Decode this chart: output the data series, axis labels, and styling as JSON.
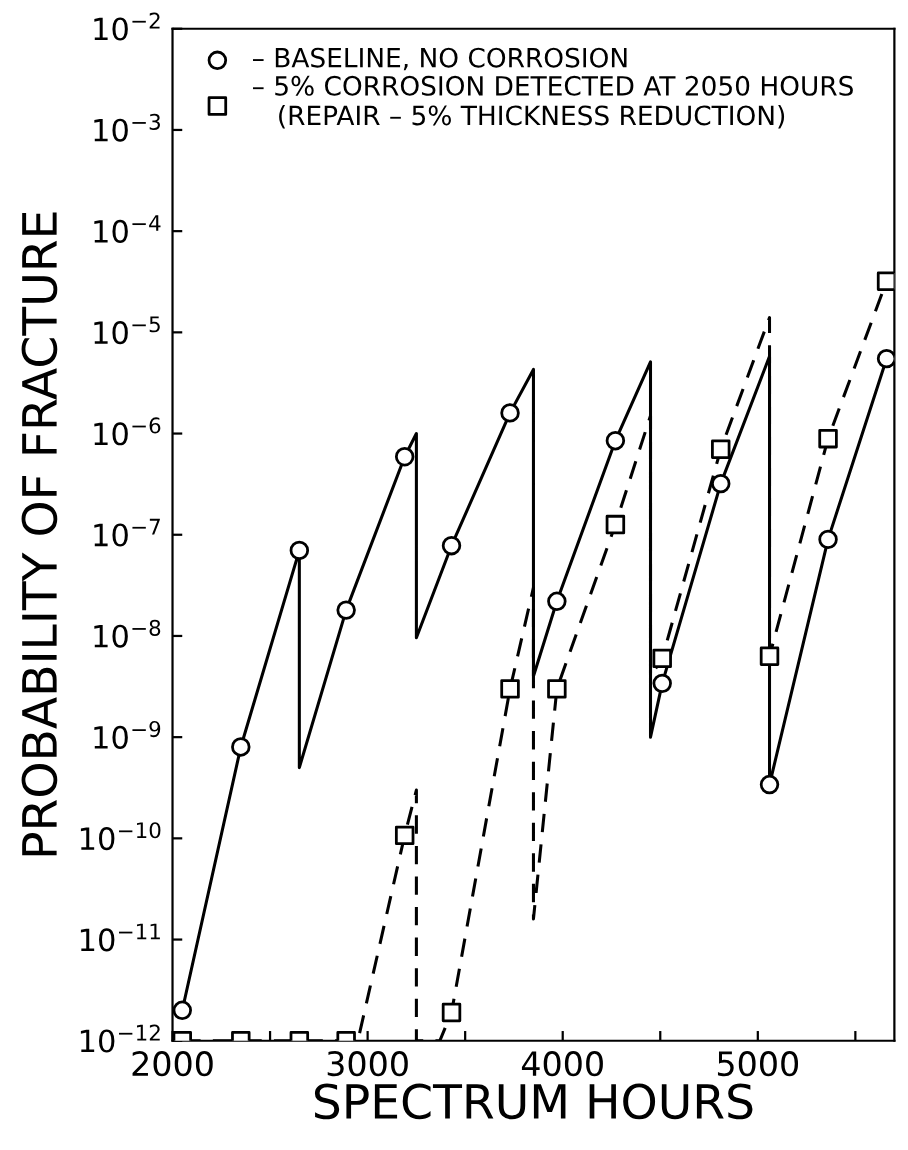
{
  "chart_data": {
    "type": "line",
    "xlabel": "SPECTRUM HOURS",
    "ylabel": "PROBABILITY OF FRACTURE",
    "log": "y",
    "grid": false,
    "legend": "top left",
    "xlim": [
      2000,
      5700
    ],
    "ylim": [
      1e-12,
      0.01
    ],
    "xticks": [
      2000,
      {
        "value": 2500,
        "label": null
      },
      3000,
      {
        "value": 3500,
        "label": null
      },
      4000,
      {
        "value": 4500,
        "label": null
      },
      5000,
      {
        "value": 5500,
        "label": null
      }
    ],
    "yticks": [
      {
        "value": 1e-12,
        "label": "10$^{−12}$"
      },
      {
        "value": 1e-11,
        "label": "10$^{−11}$"
      },
      {
        "value": 1e-10,
        "label": "10$^{−10}$"
      },
      {
        "value": 1e-09,
        "label": "10$^{−9}$"
      },
      {
        "value": 1e-08,
        "label": "10$^{−8}$"
      },
      {
        "value": 1e-07,
        "label": "10$^{−7}$"
      },
      {
        "value": 1e-06,
        "label": "10$^{−6}$"
      },
      {
        "value": 1e-05,
        "label": "10$^{−5}$"
      },
      {
        "value": 0.0001,
        "label": "10$^{−4}$"
      },
      {
        "value": 0.001,
        "label": "10$^{−3}$"
      },
      {
        "value": 0.01,
        "label": "10$^{−2}$"
      }
    ],
    "series": [
      {
        "color": "#000000",
        "line_style": "solid",
        "marker": "none",
        "x": [
          2050,
          2350,
          2650,
          2650,
          2890,
          3190,
          3250,
          3250,
          3430,
          3730,
          3850,
          3850,
          3970,
          4270,
          4450,
          4450,
          4510,
          4810,
          5060,
          5060,
          5360,
          5660
        ],
        "values": [
          2e-12,
          8e-10,
          7e-08,
          5e-10,
          1.8e-08,
          5.9e-07,
          1e-06,
          9.6e-09,
          7.8e-08,
          1.6e-06,
          4.3e-06,
          4e-09,
          2.2e-08,
          8.5e-07,
          5.1e-06,
          1e-09,
          3.4e-09,
          3.2e-07,
          5.8e-06,
          3.4e-10,
          9e-08,
          5.5e-06
        ]
      },
      {
        "color": "#000000",
        "line_style": "dashed",
        "marker": "none",
        "x": [
          2050,
          2350,
          2650,
          2890,
          2950,
          3190,
          3250,
          3250,
          3370,
          3430,
          3730,
          3850,
          3850,
          3970,
          4270,
          4450,
          4450,
          4510,
          4810,
          5060,
          5060,
          5360,
          5660
        ],
        "values": [
          1e-12,
          1e-12,
          1e-12,
          1e-12,
          1e-12,
          1.07e-10,
          3e-10,
          1e-12,
          1e-12,
          1.9e-12,
          3e-09,
          3e-08,
          1.6e-11,
          3e-09,
          1.26e-07,
          1.5e-06,
          4e-09,
          6e-09,
          7e-07,
          1.4e-05,
          6.3e-09,
          8.9e-07,
          3.2e-05
        ]
      },
      {
        "type": "scatter",
        "name": "– BASELINE, NO CORROSION",
        "color": "#000000",
        "marker": "circle",
        "x": [
          2050,
          2350,
          2650,
          2890,
          3190,
          3430,
          3730,
          3970,
          4270,
          4510,
          4810,
          5060,
          5360,
          5660
        ],
        "values": [
          2e-12,
          8e-10,
          7e-08,
          1.8e-08,
          5.9e-07,
          7.8e-08,
          1.6e-06,
          2.2e-08,
          8.5e-07,
          3.4e-09,
          3.2e-07,
          3.4e-10,
          9e-08,
          5.5e-06
        ]
      },
      {
        "type": "scatter",
        "name": "– 5% CORROSION DETECTED AT 2050 HOURS\n   (REPAIR – 5% THICKNESS REDUCTION)",
        "color": "#000000",
        "marker": "square",
        "x": [
          2050,
          2350,
          2650,
          2890,
          3190,
          3430,
          3730,
          3970,
          4270,
          4510,
          4810,
          5060,
          5360,
          5660
        ],
        "values": [
          1e-12,
          1e-12,
          1e-12,
          1e-12,
          1.07e-10,
          1.9e-12,
          3e-09,
          3e-09,
          1.26e-07,
          6e-09,
          7e-07,
          6.3e-09,
          8.9e-07,
          3.2e-05
        ]
      }
    ]
  }
}
